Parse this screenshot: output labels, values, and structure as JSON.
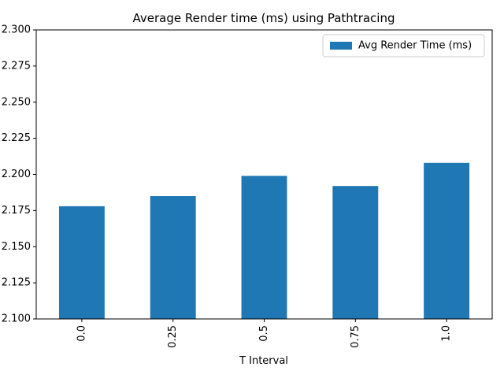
{
  "chart_data": {
    "type": "bar",
    "title": "Average Render time (ms) using Pathtracing",
    "xlabel": "T Interval",
    "ylabel": "",
    "categories": [
      "0.0",
      "0.25",
      "0.5",
      "0.75",
      "1.0"
    ],
    "series": [
      {
        "name": "Avg Render Time (ms)",
        "values": [
          2.178,
          2.185,
          2.199,
          2.192,
          2.208
        ]
      }
    ],
    "ylim": [
      2.1,
      2.3
    ],
    "yticks": [
      "2.100",
      "2.125",
      "2.150",
      "2.175",
      "2.200",
      "2.225",
      "2.250",
      "2.275",
      "2.300"
    ],
    "bar_color": "#1f77b4",
    "grid": false,
    "legend_position": "top-right",
    "x_tick_rotation": "vertical"
  }
}
